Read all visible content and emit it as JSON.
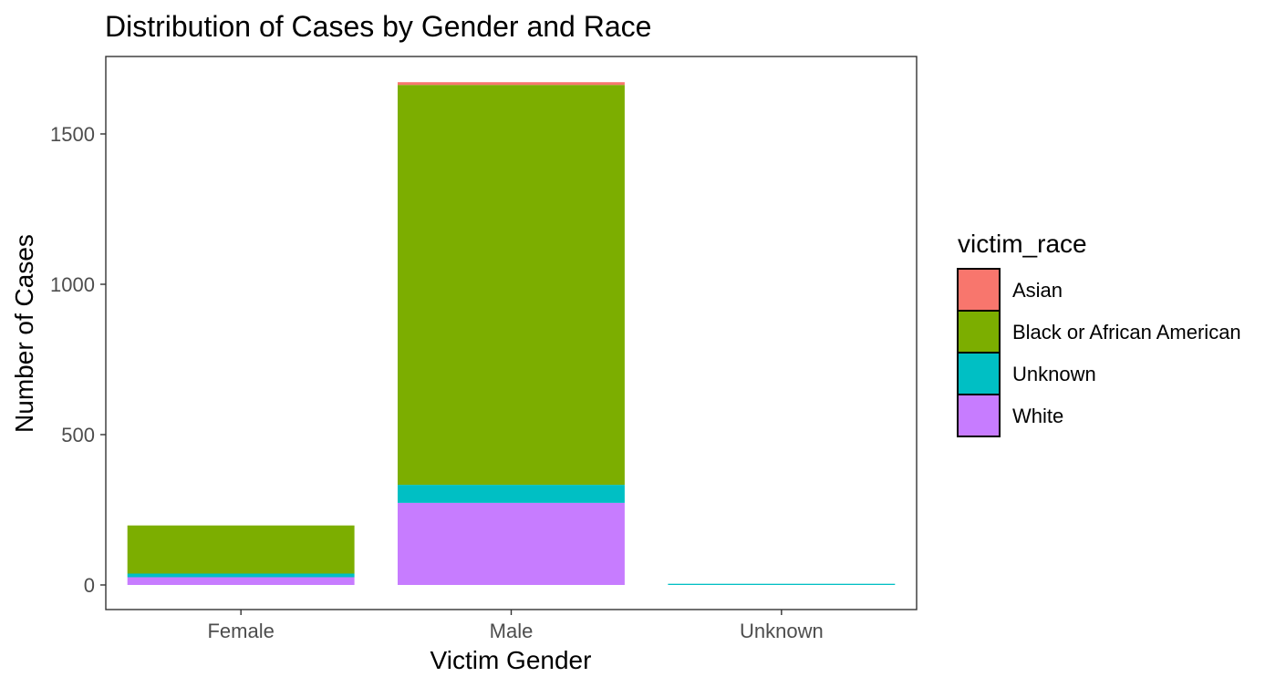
{
  "chart_data": {
    "type": "bar",
    "stacked": true,
    "title": "Distribution of Cases by Gender and Race",
    "xlabel": "Victim Gender",
    "ylabel": "Number of Cases",
    "categories": [
      "Female",
      "Male",
      "Unknown"
    ],
    "ylim": [
      0,
      1700
    ],
    "yticks": [
      0,
      500,
      1000,
      1500
    ],
    "grid": false,
    "legend": {
      "title": "victim_race",
      "position": "right"
    },
    "series": [
      {
        "name": "Asian",
        "color": "#F8766D",
        "values": [
          0,
          9,
          0
        ]
      },
      {
        "name": "Black or African American",
        "color": "#7CAE00",
        "values": [
          160,
          1330,
          0
        ]
      },
      {
        "name": "Unknown",
        "color": "#00BFC4",
        "values": [
          12,
          60,
          4
        ]
      },
      {
        "name": "White",
        "color": "#C77CFF",
        "values": [
          26,
          273,
          0
        ]
      }
    ],
    "stack_order": [
      "White",
      "Unknown",
      "Black or African American",
      "Asian"
    ]
  },
  "colors": {
    "panel_border": "#333333",
    "tick_label": "#4d4d4d"
  }
}
